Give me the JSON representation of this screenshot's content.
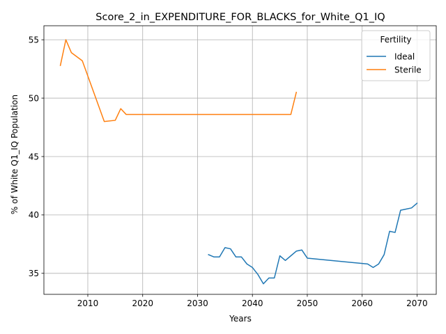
{
  "chart_data": {
    "type": "line",
    "title": "Score_2_in_EXPENDITURE_FOR_BLACKS_for_White_Q1_IQ",
    "xlabel": "Years",
    "ylabel": "% of White Q1_IQ Population",
    "xlim": [
      2002,
      2073.5
    ],
    "ylim": [
      33.2,
      56.2
    ],
    "xticks": [
      2010,
      2020,
      2030,
      2040,
      2050,
      2060,
      2070
    ],
    "yticks": [
      35,
      40,
      45,
      50,
      55
    ],
    "grid": true,
    "legend": {
      "title": "Fertility",
      "placement": "top-right"
    },
    "series": [
      {
        "name": "Ideal",
        "color": "#1f77b4",
        "points": [
          [
            2032,
            36.6
          ],
          [
            2033,
            36.4
          ],
          [
            2034,
            36.4
          ],
          [
            2035,
            37.2
          ],
          [
            2036,
            37.1
          ],
          [
            2037,
            36.4
          ],
          [
            2038,
            36.4
          ],
          [
            2039,
            35.8
          ],
          [
            2040,
            35.5
          ],
          [
            2041,
            34.9
          ],
          [
            2042,
            34.1
          ],
          [
            2043,
            34.6
          ],
          [
            2044,
            34.6
          ],
          [
            2045,
            36.5
          ],
          [
            2046,
            36.1
          ],
          [
            2047,
            36.5
          ],
          [
            2048,
            36.9
          ],
          [
            2049,
            37.0
          ],
          [
            2050,
            36.3
          ],
          [
            2061,
            35.8
          ],
          [
            2062,
            35.5
          ],
          [
            2063,
            35.8
          ],
          [
            2064,
            36.6
          ],
          [
            2065,
            38.6
          ],
          [
            2066,
            38.5
          ],
          [
            2067,
            40.4
          ],
          [
            2068,
            40.5
          ],
          [
            2069,
            40.6
          ],
          [
            2070,
            41.0
          ]
        ]
      },
      {
        "name": "Sterile",
        "color": "#ff7f0e",
        "points": [
          [
            2005,
            52.8
          ],
          [
            2006,
            55.0
          ],
          [
            2007,
            53.9
          ],
          [
            2009,
            53.2
          ],
          [
            2013,
            48.0
          ],
          [
            2015,
            48.1
          ],
          [
            2016,
            49.1
          ],
          [
            2017,
            48.6
          ],
          [
            2047,
            48.6
          ],
          [
            2048,
            50.5
          ]
        ]
      }
    ]
  }
}
